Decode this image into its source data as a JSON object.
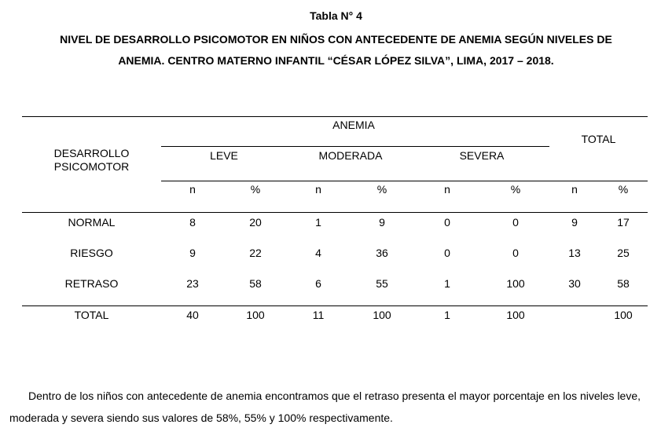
{
  "heading": {
    "table_number": "Tabla N° 4",
    "title_line1": "NIVEL DE DESARROLLO PSICOMOTOR EN NIÑOS CON ANTECEDENTE DE ANEMIA SEGÚN NIVELES DE",
    "title_line2": "ANEMIA. CENTRO MATERNO INFANTIL “CÉSAR LÓPEZ SILVA”, LIMA, 2017 – 2018."
  },
  "table": {
    "row_header_line1": "DESARROLLO",
    "row_header_line2": "PSICOMOTOR",
    "group_header": "ANEMIA",
    "total_header": "TOTAL",
    "subgroups": [
      "LEVE",
      "MODERADA",
      "SEVERA"
    ],
    "n_label": "n",
    "pct_label": "%",
    "rows": [
      {
        "label": "NORMAL",
        "values": [
          "8",
          "20",
          "1",
          "9",
          "0",
          "0",
          "9",
          "17"
        ]
      },
      {
        "label": "RIESGO",
        "values": [
          "9",
          "22",
          "4",
          "36",
          "0",
          "0",
          "13",
          "25"
        ]
      },
      {
        "label": "RETRASO",
        "values": [
          "23",
          "58",
          "6",
          "55",
          "1",
          "100",
          "30",
          "58"
        ]
      },
      {
        "label": "TOTAL",
        "values": [
          "40",
          "100",
          "11",
          "100",
          "1",
          "100",
          "",
          "100"
        ]
      }
    ]
  },
  "paragraph": "Dentro de los niños con antecedente de anemia encontramos que el retraso presenta el mayor porcentaje en los niveles leve, moderada y severa siendo sus valores de 58%, 55% y 100% respectivamente."
}
